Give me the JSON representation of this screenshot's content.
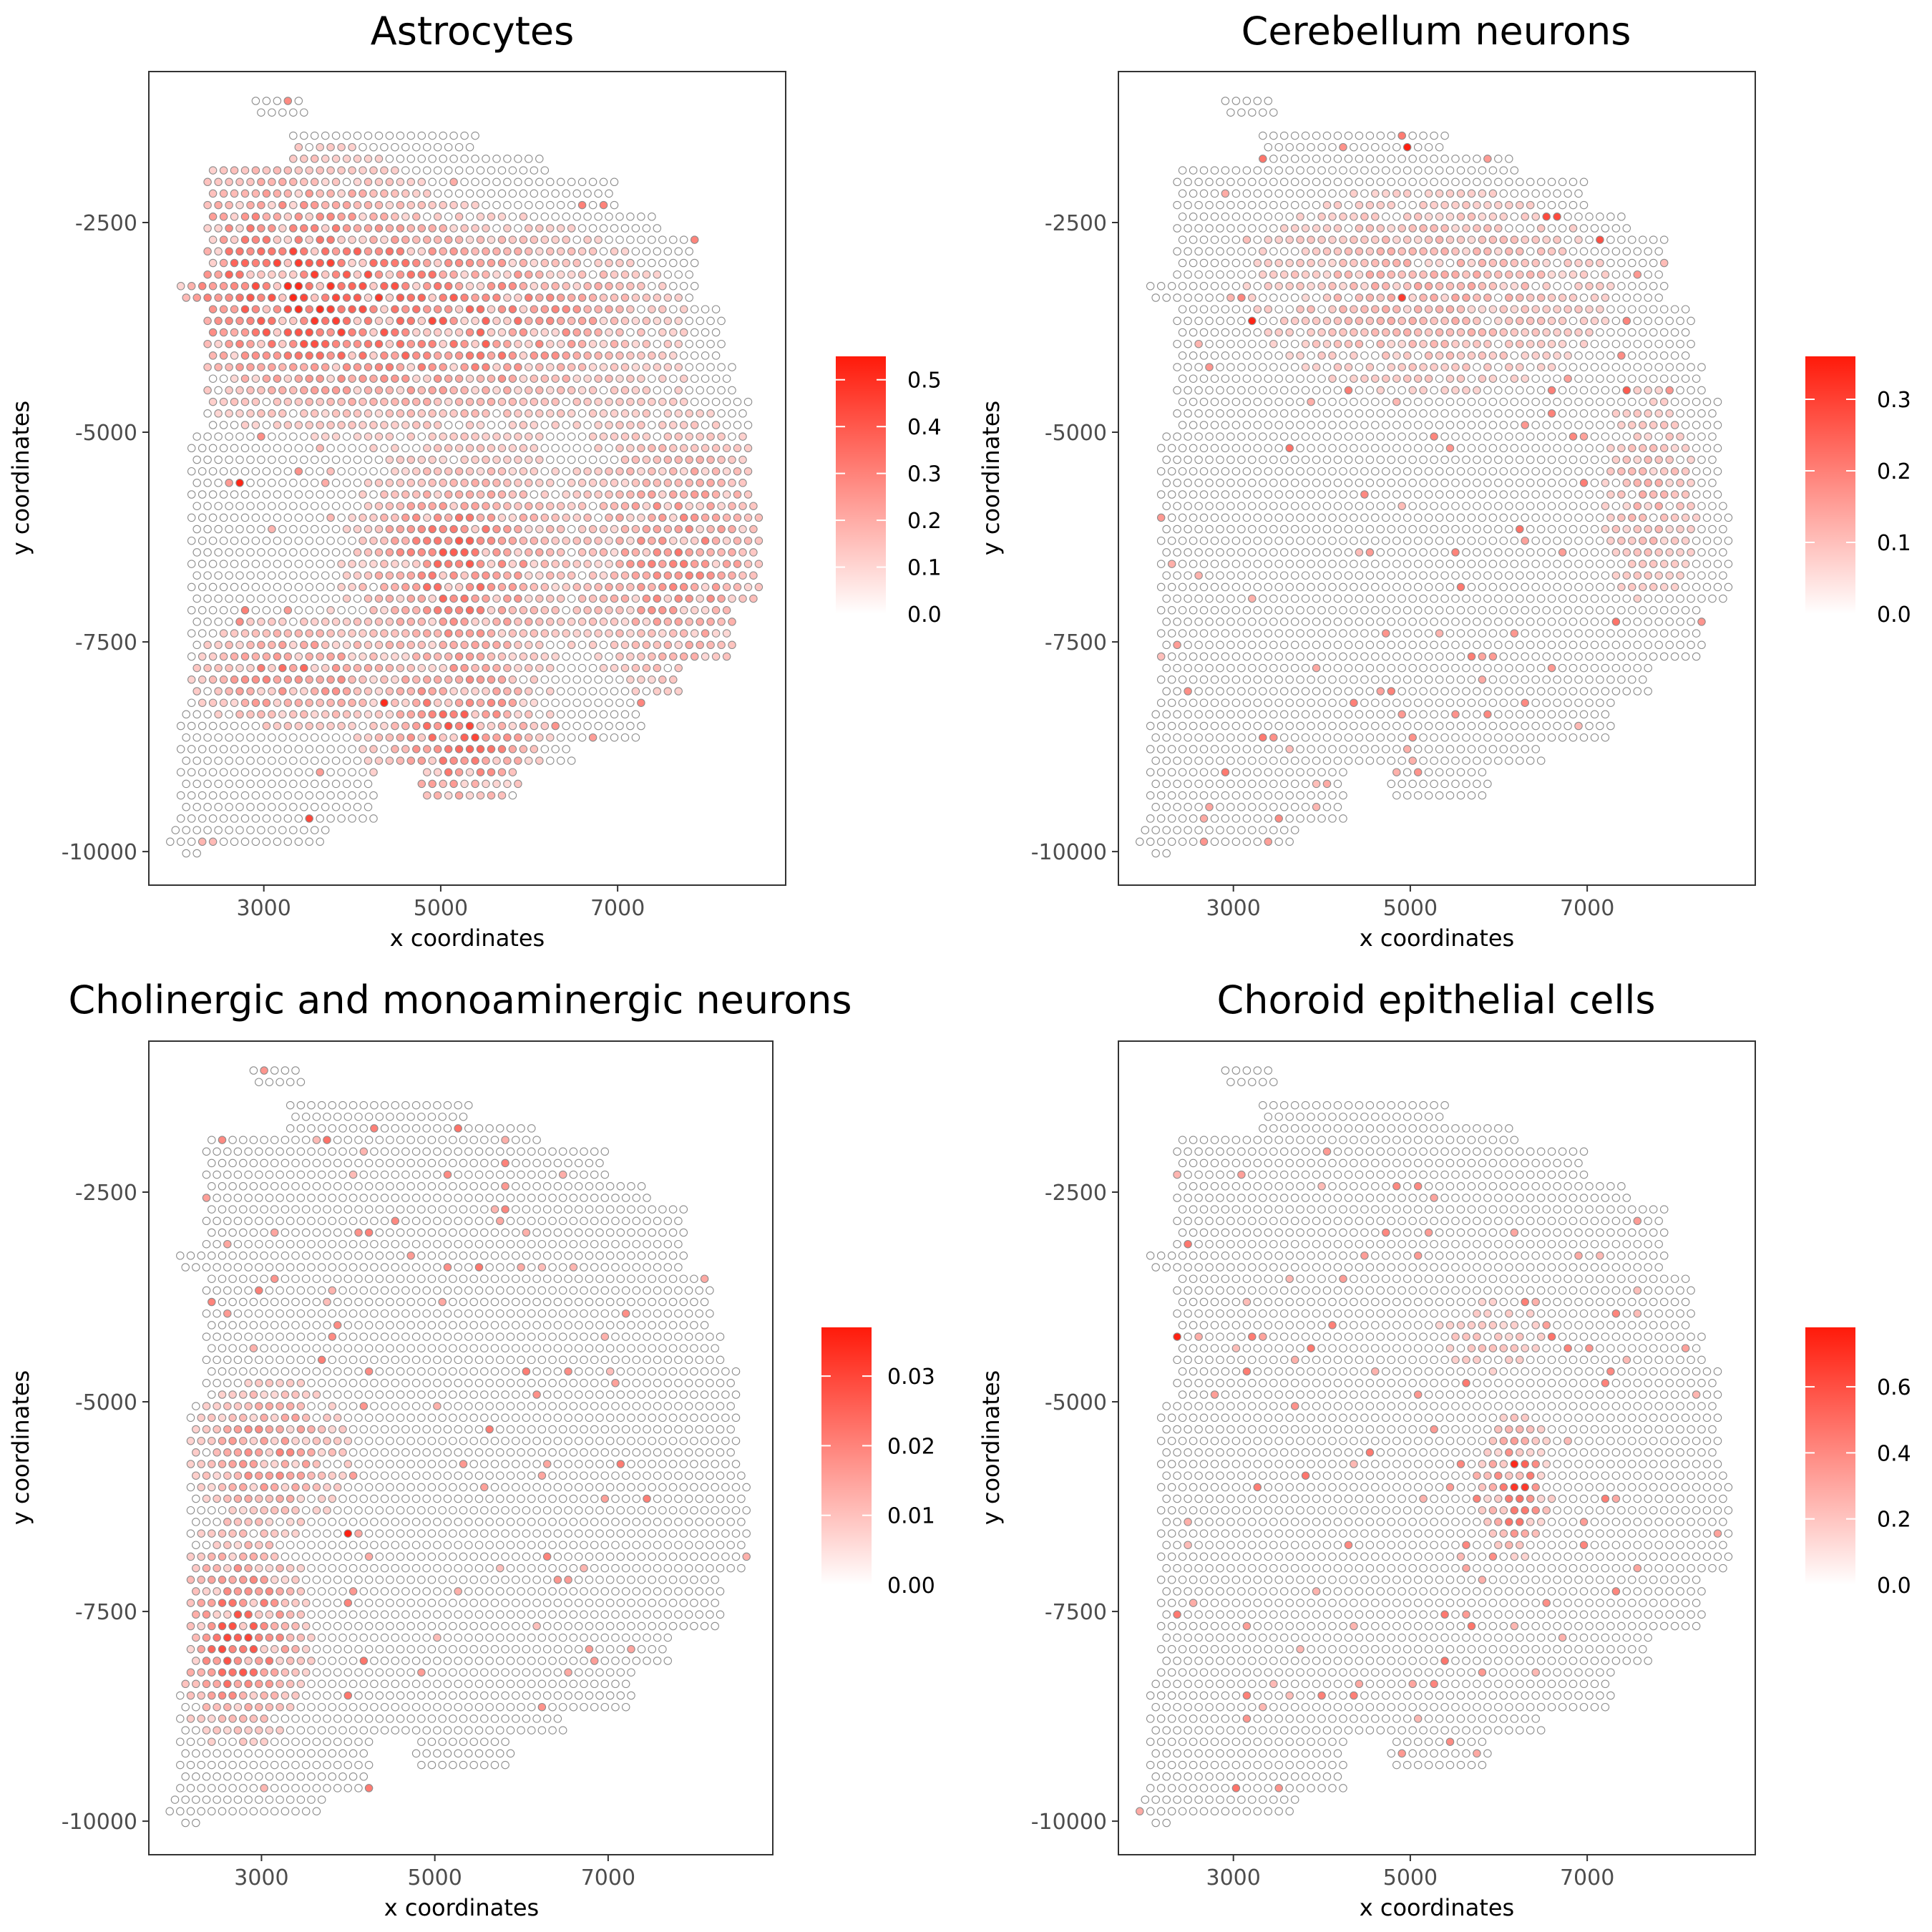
{
  "chart_data": {
    "type": "scatter",
    "xlabel": "x coordinates",
    "ylabel": "y coordinates",
    "xlim": [
      1700,
      8900
    ],
    "ylim": [
      -10400,
      -700
    ],
    "x_ticks": [
      {
        "value": 3000,
        "label": "3000"
      },
      {
        "value": 5000,
        "label": "5000"
      },
      {
        "value": 7000,
        "label": "7000"
      }
    ],
    "y_ticks": [
      {
        "value": -2500,
        "label": "-2500"
      },
      {
        "value": -5000,
        "label": "-5000"
      },
      {
        "value": -7500,
        "label": "-7500"
      },
      {
        "value": -10000,
        "label": "-10000"
      }
    ],
    "grid": false,
    "legend_position": "right",
    "color_low": "#ffffff",
    "color_high": "#ff1a0a",
    "point_outline": "#8c8c8c",
    "spot_grid": {
      "x_step": 121,
      "y_step": 138
    },
    "panels": [
      {
        "title": "Astrocytes",
        "colorbar": {
          "min": 0.0,
          "max": 0.55,
          "ticks": [
            0.0,
            0.1,
            0.2,
            0.3,
            0.4,
            0.5
          ],
          "tick_labels": [
            "0.0",
            "0.1",
            "0.2",
            "0.3",
            "0.4",
            "0.5"
          ]
        },
        "hotspots": [
          {
            "x": 3300,
            "y": -3200,
            "sx": 1250,
            "sy": 1150,
            "peak": 0.32
          },
          {
            "x": 5300,
            "y": -3700,
            "sx": 1700,
            "sy": 900,
            "peak": 0.27
          },
          {
            "x": 5200,
            "y": -6600,
            "sx": 900,
            "sy": 1000,
            "peak": 0.3
          },
          {
            "x": 5200,
            "y": -8600,
            "sx": 700,
            "sy": 700,
            "peak": 0.33
          },
          {
            "x": 3300,
            "y": -7900,
            "sx": 800,
            "sy": 500,
            "peak": 0.26
          },
          {
            "x": 7700,
            "y": -6500,
            "sx": 900,
            "sy": 1300,
            "peak": 0.22
          }
        ],
        "highlights": [
          {
            "x": 2750,
            "y": -5600,
            "value": 0.52
          },
          {
            "x": 4370,
            "y": -8200,
            "value": 0.5
          },
          {
            "x": 3490,
            "y": -9600,
            "value": 0.42
          }
        ]
      },
      {
        "title": "Cerebellum neurons",
        "colorbar": {
          "min": 0.0,
          "max": 0.36,
          "ticks": [
            0.0,
            0.1,
            0.2,
            0.3
          ],
          "tick_labels": [
            "0.0",
            "0.1",
            "0.2",
            "0.3"
          ]
        },
        "hotspots": [
          {
            "x": 5200,
            "y": -3300,
            "sx": 1800,
            "sy": 1100,
            "peak": 0.08
          },
          {
            "x": 7700,
            "y": -5800,
            "sx": 500,
            "sy": 1200,
            "peak": 0.07
          }
        ],
        "highlights": [
          {
            "x": 4950,
            "y": -1550,
            "value": 0.35
          },
          {
            "x": 3250,
            "y": -3650,
            "value": 0.34
          },
          {
            "x": 4950,
            "y": -3400,
            "value": 0.3
          },
          {
            "x": 7100,
            "y": -2700,
            "value": 0.26
          },
          {
            "x": 6590,
            "y": -2450,
            "value": 0.27
          },
          {
            "x": 7450,
            "y": -4500,
            "value": 0.24
          }
        ]
      },
      {
        "title": "Cholinergic and monoaminergic neurons",
        "colorbar": {
          "min": 0.0,
          "max": 0.037,
          "ticks": [
            0.0,
            0.01,
            0.02,
            0.03
          ],
          "tick_labels": [
            "0.00",
            "0.01",
            "0.02",
            "0.03"
          ]
        },
        "hotspots": [
          {
            "x": 2750,
            "y": -7800,
            "sx": 550,
            "sy": 900,
            "peak": 0.024
          },
          {
            "x": 3100,
            "y": -5600,
            "sx": 700,
            "sy": 700,
            "peak": 0.014
          }
        ],
        "highlights": [
          {
            "x": 4000,
            "y": -6600,
            "value": 0.036
          }
        ]
      },
      {
        "title": "Choroid epithelial cells",
        "colorbar": {
          "min": 0.0,
          "max": 0.78,
          "ticks": [
            0.0,
            0.2,
            0.4,
            0.6
          ],
          "tick_labels": [
            "0.0",
            "0.2",
            "0.4",
            "0.6"
          ]
        },
        "hotspots": [
          {
            "x": 6200,
            "y": -6000,
            "sx": 260,
            "sy": 550,
            "peak": 0.68
          },
          {
            "x": 5900,
            "y": -4200,
            "sx": 700,
            "sy": 500,
            "peak": 0.1
          }
        ],
        "highlights": [
          {
            "x": 2390,
            "y": -4250,
            "value": 0.75
          }
        ]
      }
    ]
  }
}
